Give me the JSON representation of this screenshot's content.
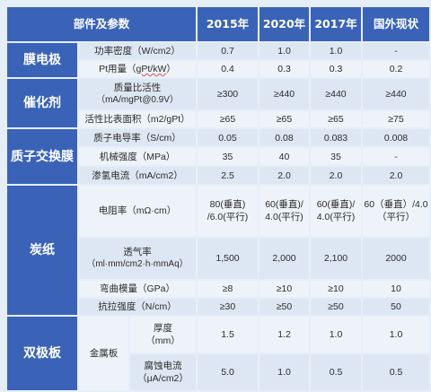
{
  "header": {
    "param": "部件及参数",
    "col_2015": "2015年",
    "col_2020": "2020年",
    "col_2017": "2017年",
    "col_foreign": "国外现状"
  },
  "membrane_electrode": {
    "label": "膜电极",
    "rows": [
      {
        "param": "功率密度（W/cm2）",
        "v2015": "0.7",
        "v2020": "1.0",
        "v2017": "1.0",
        "foreign": "-"
      },
      {
        "param_main": "Pt用量（",
        "param_wavy": "gPt/kW",
        "param_end": "）",
        "v2015": "0.4",
        "v2020": "0.3",
        "v2017": "0.3",
        "foreign": "0.2"
      }
    ]
  },
  "catalyst": {
    "label": "催化剂",
    "rows": [
      {
        "param_l1": "质量比活性",
        "param_l2": "（mA/mgPt@0.9V）",
        "v2015": "≥300",
        "v2020": "≥440",
        "v2017": "≥440",
        "foreign": "≥440"
      },
      {
        "param": "活性比表面积（m2/gPt）",
        "v2015": "≥65",
        "v2020": "≥65",
        "v2017": "≥65",
        "foreign": "≥75"
      }
    ]
  },
  "pem": {
    "label": "质子交换膜",
    "rows": [
      {
        "param": "质子电导率（S/cm）",
        "v2015": "0.05",
        "v2020": "0.08",
        "v2017": "0.083",
        "foreign": "0.008"
      },
      {
        "param": "机械强度（MPa）",
        "v2015": "35",
        "v2020": "40",
        "v2017": "35",
        "foreign": "-"
      },
      {
        "param": "渗氢电流（mA/cm2）",
        "v2015": "2.5",
        "v2020": "2.0",
        "v2017": "2.0",
        "foreign": "2.0"
      }
    ]
  },
  "carbon_paper": {
    "label": "炭纸",
    "rows": [
      {
        "param": "电阻率（mΩ·cm）",
        "v2015_l1": "80(垂直)",
        "v2015_l2": "/6.0(平行)",
        "v2020_l1": "60(垂直)/",
        "v2020_l2": "4.0(平行)",
        "v2017_l1": "60(垂直)/",
        "v2017_l2": "4.0(平行)",
        "foreign_l1": "60（垂直）/4.0",
        "foreign_l2": "（平行）"
      },
      {
        "param_l1": "透气率",
        "param_l2": "（ml·mm/cm2·h·mmAq）",
        "v2015": "1,500",
        "v2020": "2,000",
        "v2017": "2,100",
        "foreign": "2000"
      },
      {
        "param": "弯曲模量（GPa）",
        "v2015": "≥8",
        "v2020": "≥10",
        "v2017": "≥10",
        "foreign": "10"
      },
      {
        "param": "抗拉强度（N/cm）",
        "v2015": "≥30",
        "v2020": "≥50",
        "v2017": "≥50",
        "foreign": "50"
      }
    ]
  },
  "bipolar": {
    "label": "双极板",
    "sub": "金属板",
    "rows": [
      {
        "param_l1": "厚度",
        "param_l2": "（mm）",
        "v2015": "1.5",
        "v2020": "1.2",
        "v2017": "1.0",
        "foreign": "1.0"
      },
      {
        "param_l1": "腐蚀电流",
        "param_l2": "（μA/cm2）",
        "v2015": "5.0",
        "v2020": "1.0",
        "v2017": "0.5",
        "foreign": "0.5"
      }
    ]
  }
}
